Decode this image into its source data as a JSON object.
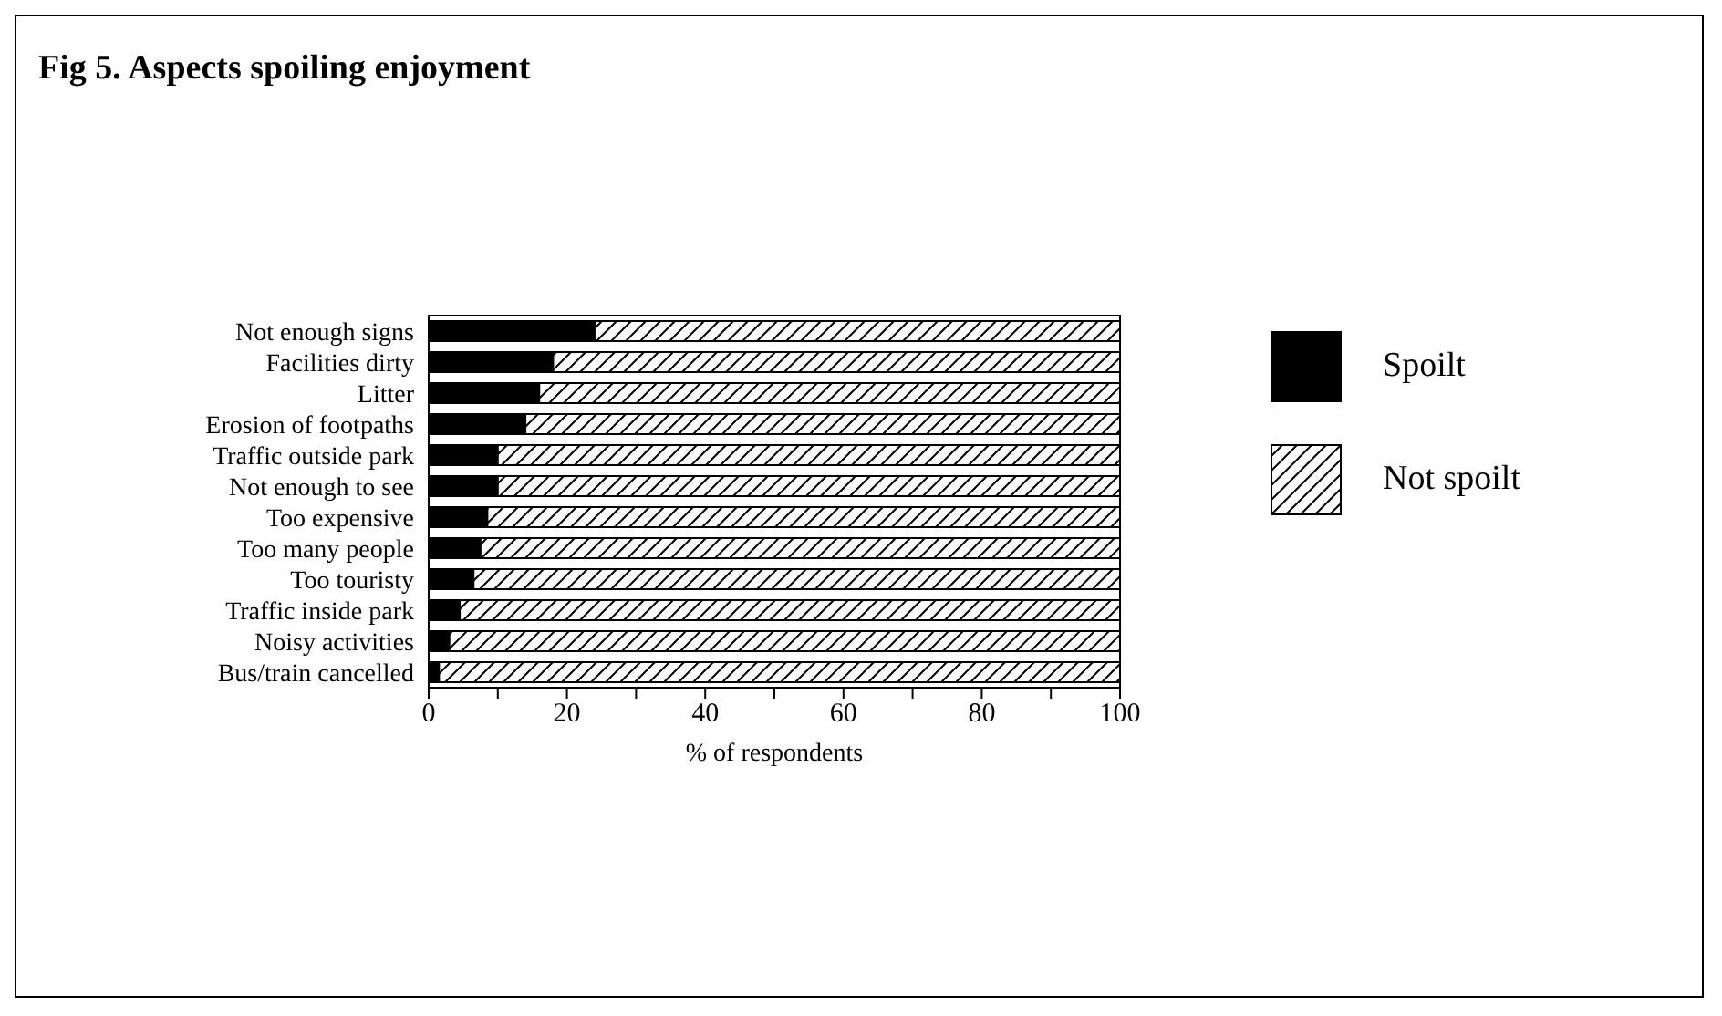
{
  "chart_data": {
    "type": "bar",
    "orientation": "horizontal",
    "stacked": true,
    "title": "Fig 5. Aspects spoiling enjoyment",
    "xlabel": "% of respondents",
    "categories": [
      "Not enough signs",
      "Facilities dirty",
      "Litter",
      "Erosion of footpaths",
      "Traffic outside park",
      "Not enough to see",
      "Too expensive",
      "Too many people",
      "Too touristy",
      "Traffic inside park",
      "Noisy activities",
      "Bus/train cancelled"
    ],
    "series": [
      {
        "name": "Spoilt",
        "color": "#000000",
        "values": [
          24,
          18,
          16,
          14,
          10,
          10,
          8.5,
          7.5,
          6.5,
          4.5,
          3,
          1.5
        ]
      },
      {
        "name": "Not spoilt",
        "color": "#000000",
        "values": [
          76,
          82,
          84,
          86,
          90,
          90,
          91.5,
          92.5,
          93.5,
          95.5,
          97,
          98.5
        ]
      }
    ],
    "xlim": [
      0,
      100
    ],
    "xticks": [
      0,
      {
        "value": 10,
        "label": null
      },
      20,
      {
        "value": 30,
        "label": null
      },
      40,
      {
        "value": 50,
        "label": null
      },
      60,
      {
        "value": 70,
        "label": null
      },
      80,
      {
        "value": 90,
        "label": null
      },
      100
    ],
    "legend": "right",
    "grid": false
  }
}
